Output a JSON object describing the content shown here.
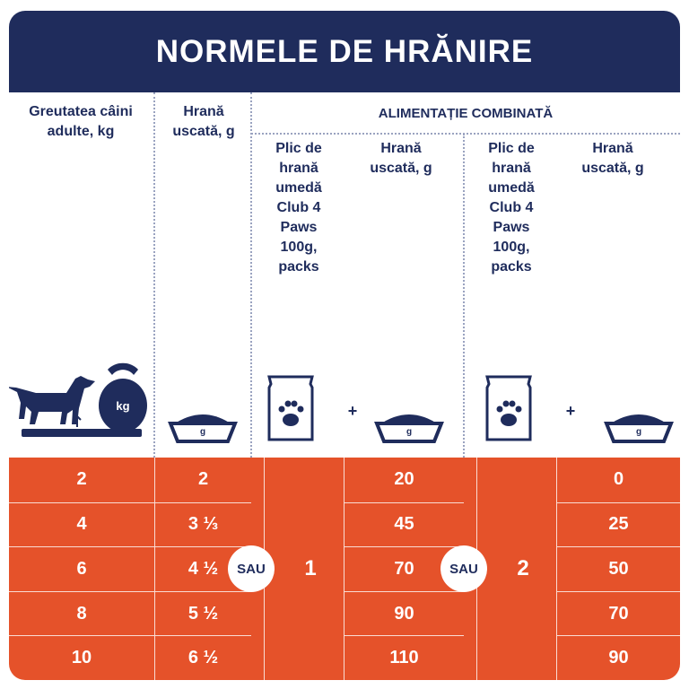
{
  "header": {
    "title": "NORMELE DE HRĂNIRE"
  },
  "table": {
    "columns": {
      "weight": "Greutatea câini adulte, kg",
      "dry": "Hrană uscată, g",
      "combined": "ALIMENTAȚIE COMBINATĂ",
      "pouch_1": "Plic de hrană umedă Club 4 Paws 100g, packs",
      "dry_1": "Hrană uscată, g",
      "pouch_2": "Plic de hrană umedă Club 4 Paws 100g, packs",
      "dry_2": "Hrană uscată, g"
    },
    "rows": [
      [
        "2",
        "2",
        "20",
        "0"
      ],
      [
        "4",
        "3 ⅓",
        "45",
        "25"
      ],
      [
        "6",
        "4 ½",
        "70",
        "50"
      ],
      [
        "8",
        "5 ½",
        "90",
        "70"
      ],
      [
        "10",
        "6 ½",
        "110",
        "90"
      ]
    ],
    "pouches": [
      "1",
      "2"
    ],
    "or": [
      "SAU",
      "SAU"
    ]
  },
  "icons": {
    "kettlebell": "kg",
    "bowl": "g",
    "plus": "+"
  }
}
